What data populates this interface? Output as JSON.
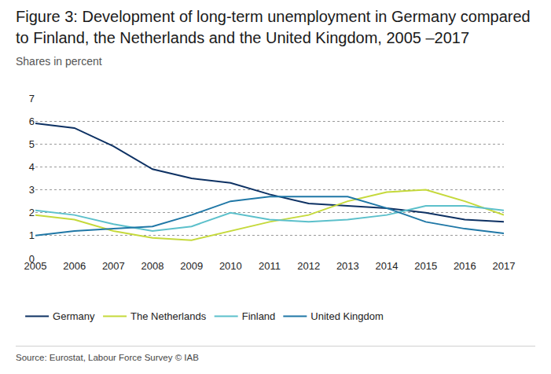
{
  "chart_data": {
    "type": "line",
    "title": "Figure 3: Development of long-term unemployment in Germany compared to Finland, the Netherlands and the United Kingdom, 2005 –2017",
    "subtitle": "Shares in percent",
    "annotations": [
      "Source: Eurostat, Labour Force Survey © IAB"
    ],
    "categories": [
      "2005",
      "2006",
      "2007",
      "2008",
      "2009",
      "2010",
      "2011",
      "2012",
      "2013",
      "2014",
      "2015",
      "2016",
      "2017"
    ],
    "series": [
      {
        "name": "Germany",
        "color": "#0d3163",
        "values": [
          5.9,
          5.7,
          4.9,
          3.9,
          3.5,
          3.3,
          2.8,
          2.4,
          2.3,
          2.2,
          2.0,
          1.7,
          1.6
        ]
      },
      {
        "name": "The Netherlands",
        "color": "#c5d93b",
        "values": [
          1.9,
          1.7,
          1.2,
          0.9,
          0.8,
          1.2,
          1.6,
          1.9,
          2.5,
          2.9,
          3.0,
          2.5,
          1.9
        ]
      },
      {
        "name": "Finland",
        "color": "#5cc0cb",
        "values": [
          2.1,
          1.9,
          1.5,
          1.2,
          1.4,
          2.0,
          1.7,
          1.6,
          1.7,
          1.9,
          2.3,
          2.3,
          2.1
        ]
      },
      {
        "name": "United Kingdom",
        "color": "#1f77a6",
        "values": [
          1.0,
          1.2,
          1.3,
          1.4,
          1.9,
          2.5,
          2.7,
          2.7,
          2.7,
          2.2,
          1.6,
          1.3,
          1.1
        ]
      }
    ],
    "ylim": [
      0,
      7
    ],
    "yticks": [
      0,
      1,
      2,
      3,
      4,
      5,
      6,
      7
    ],
    "grid": true,
    "legend": "bottom"
  }
}
